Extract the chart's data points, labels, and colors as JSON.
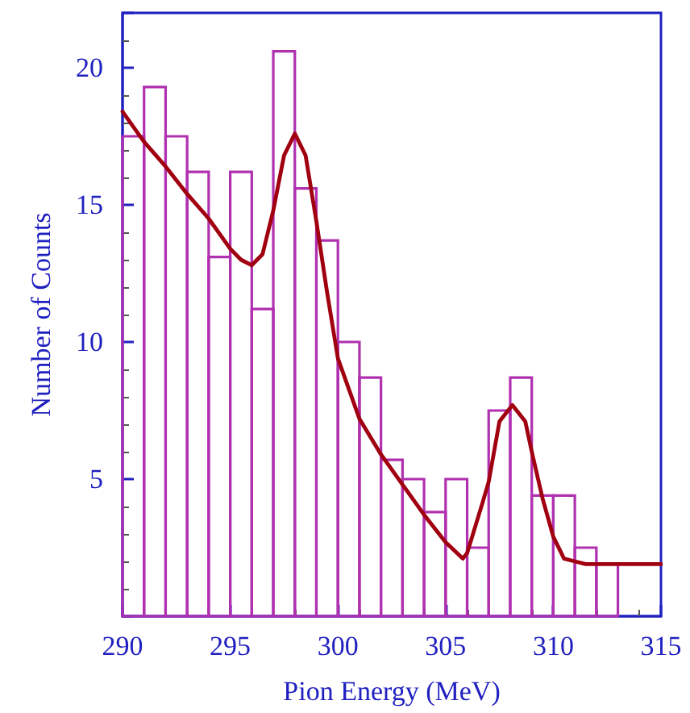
{
  "chart_data": {
    "type": "histogram",
    "xlabel": "Pion Energy (MeV)",
    "ylabel": "Number of Counts",
    "xlim": [
      290,
      315
    ],
    "xticks": [
      290,
      295,
      300,
      305,
      310,
      315
    ],
    "ylim": [
      0,
      22
    ],
    "yticks": [
      5,
      10,
      15,
      20
    ],
    "grid": false,
    "series": [
      {
        "color": "#b030b0",
        "bins": [
          290,
          291,
          292,
          293,
          294,
          295,
          296,
          297,
          298,
          299,
          300,
          301,
          302,
          303,
          304,
          305,
          306,
          307,
          308,
          309,
          310,
          311,
          312,
          313
        ],
        "values": [
          17.5,
          19.3,
          17.5,
          16.2,
          13.1,
          16.2,
          11.2,
          20.6,
          15.6,
          13.7,
          10.0,
          8.7,
          5.7,
          5.0,
          3.8,
          5.0,
          2.5,
          7.5,
          8.7,
          4.4,
          4.4,
          2.5,
          1.9
        ]
      },
      {
        "type": "line",
        "color": "#a00010",
        "marker": "none",
        "x": [
          290,
          291,
          292,
          293,
          294,
          295,
          295.5,
          296,
          296.5,
          297,
          297.5,
          298,
          298.5,
          299,
          299.5,
          300,
          301,
          302,
          303,
          304,
          305,
          305.8,
          306,
          306.7,
          307,
          307.5,
          308.1,
          308.7,
          309,
          309.5,
          310,
          310.5,
          311,
          311.5,
          312,
          315
        ],
        "values": [
          18.4,
          17.3,
          16.4,
          15.4,
          14.5,
          13.4,
          13.0,
          12.8,
          13.2,
          14.8,
          16.8,
          17.6,
          16.8,
          14.4,
          11.8,
          9.4,
          7.2,
          5.9,
          4.8,
          3.7,
          2.7,
          2.1,
          2.3,
          4.1,
          4.9,
          7.1,
          7.7,
          7.1,
          6.0,
          4.3,
          2.9,
          2.1,
          2.0,
          1.9,
          1.9,
          1.9
        ]
      }
    ]
  }
}
